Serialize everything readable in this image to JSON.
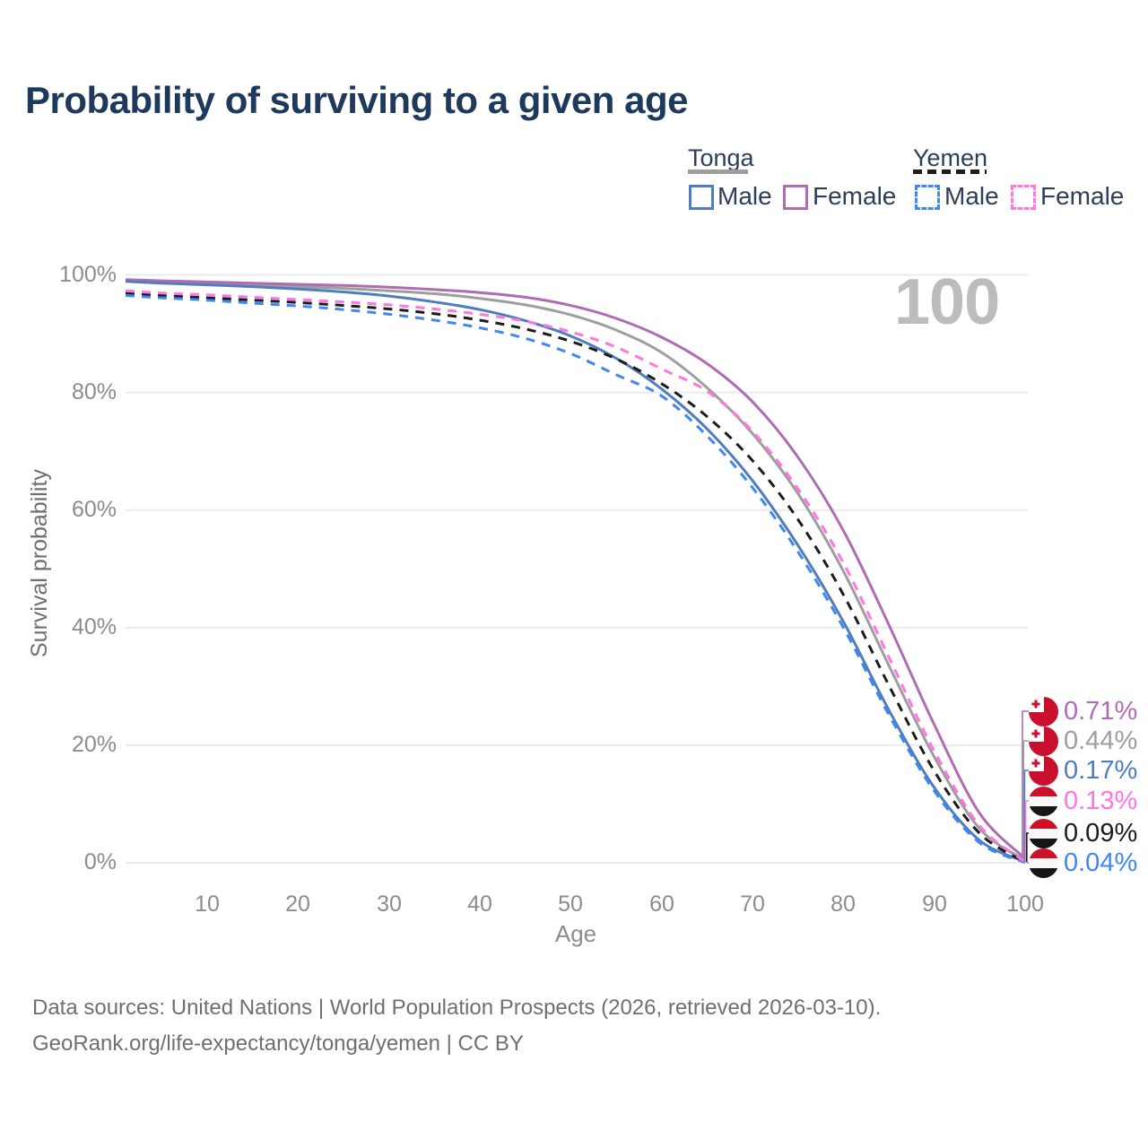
{
  "page": {
    "title": "Probability of surviving to a given age",
    "watermark": "100"
  },
  "legend": {
    "groups": [
      {
        "country": "Tonga",
        "items": [
          {
            "label": "Male"
          },
          {
            "label": "Female"
          }
        ]
      },
      {
        "country": "Yemen",
        "items": [
          {
            "label": "Male"
          },
          {
            "label": "Female"
          }
        ]
      }
    ]
  },
  "end_labels": [
    {
      "country": "Tonga",
      "flag": "tonga-flag",
      "value": "0.71%",
      "series": "Tonga Female"
    },
    {
      "country": "Tonga",
      "flag": "tonga-flag",
      "value": "0.44%",
      "series": "Tonga"
    },
    {
      "country": "Tonga",
      "flag": "tonga-flag",
      "value": "0.17%",
      "series": "Tonga Male"
    },
    {
      "country": "Yemen",
      "flag": "yemen-flag",
      "value": "0.13%",
      "series": "Yemen Female"
    },
    {
      "country": "Yemen",
      "flag": "yemen-flag",
      "value": "0.09%",
      "series": "Yemen"
    },
    {
      "country": "Yemen",
      "flag": "yemen-flag",
      "value": "0.04%",
      "series": "Yemen Male"
    }
  ],
  "footer": {
    "line1": "Data sources: United Nations | World Population Prospects (2026, retrieved 2026-03-10).",
    "line2": "GeoRank.org/life-expectancy/tonga/yemen | CC BY"
  },
  "chart_data": {
    "type": "line",
    "title": "Probability of surviving to a given age",
    "xlabel": "Age",
    "ylabel": "Survival probability",
    "xlim": [
      1,
      100
    ],
    "ylim": [
      0,
      100
    ],
    "x_ticks": [
      10,
      20,
      30,
      40,
      50,
      60,
      70,
      80,
      90,
      100
    ],
    "y_tick_labels": [
      "100%",
      "80%",
      "60%",
      "40%",
      "20%",
      "0%"
    ],
    "y_tick_values": [
      100,
      80,
      60,
      40,
      20,
      0
    ],
    "grid": "horizontal",
    "legend_position": "top-right",
    "ages": [
      1,
      5,
      10,
      15,
      20,
      25,
      30,
      35,
      40,
      45,
      50,
      55,
      60,
      65,
      70,
      75,
      80,
      85,
      90,
      95,
      100
    ],
    "series": [
      {
        "name": "Tonga Female",
        "country": "Tonga",
        "sex": "female",
        "style": "solid",
        "color": "#af6cb3",
        "end_value_pct": 0.71,
        "values": [
          99.2,
          99.0,
          98.8,
          98.6,
          98.4,
          98.2,
          97.9,
          97.5,
          97.0,
          96.2,
          94.8,
          92.6,
          89.4,
          84.9,
          78.4,
          69.0,
          56.5,
          40.5,
          23.5,
          8.4,
          0.71
        ]
      },
      {
        "name": "Tonga",
        "country": "Tonga",
        "sex": "total",
        "style": "solid",
        "color": "#9e9e9e",
        "end_value_pct": 0.44,
        "values": [
          99.0,
          98.8,
          98.6,
          98.3,
          98.0,
          97.7,
          97.3,
          96.8,
          96.0,
          94.9,
          93.2,
          90.6,
          86.8,
          80.8,
          73.0,
          62.8,
          49.6,
          33.6,
          18.0,
          5.8,
          0.44
        ]
      },
      {
        "name": "Tonga Male",
        "country": "Tonga",
        "sex": "male",
        "style": "solid",
        "color": "#4f7dbd",
        "end_value_pct": 0.17,
        "values": [
          98.9,
          98.6,
          98.3,
          98.0,
          97.6,
          97.1,
          96.4,
          95.4,
          94.1,
          92.2,
          89.6,
          85.8,
          80.6,
          73.8,
          65.0,
          54.0,
          41.0,
          26.0,
          12.8,
          3.8,
          0.17
        ]
      },
      {
        "name": "Yemen Female",
        "country": "Yemen",
        "sex": "female",
        "style": "dashed",
        "color": "#ff75e1",
        "end_value_pct": 0.13,
        "values": [
          97.3,
          96.9,
          96.6,
          96.2,
          95.8,
          95.4,
          94.9,
          94.2,
          93.3,
          92.1,
          90.3,
          87.7,
          84.0,
          80.2,
          73.4,
          63.6,
          51.0,
          35.0,
          19.0,
          6.3,
          0.13
        ]
      },
      {
        "name": "Yemen",
        "country": "Yemen",
        "sex": "total",
        "style": "dashed",
        "color": "#1c1c1c",
        "end_value_pct": 0.09,
        "values": [
          96.9,
          96.5,
          96.1,
          95.7,
          95.3,
          94.8,
          94.2,
          93.4,
          92.3,
          90.8,
          88.7,
          85.7,
          81.5,
          75.9,
          68.4,
          58.4,
          45.6,
          30.2,
          15.6,
          5.0,
          0.09
        ]
      },
      {
        "name": "Yemen Male",
        "country": "Yemen",
        "sex": "male",
        "style": "dashed",
        "color": "#3e87f4",
        "end_value_pct": 0.04,
        "values": [
          96.5,
          96.1,
          95.7,
          95.2,
          94.7,
          94.1,
          93.3,
          92.3,
          91.0,
          89.2,
          86.6,
          83.0,
          79.4,
          72.6,
          63.8,
          52.9,
          40.0,
          25.2,
          12.2,
          3.4,
          0.04
        ]
      }
    ]
  }
}
